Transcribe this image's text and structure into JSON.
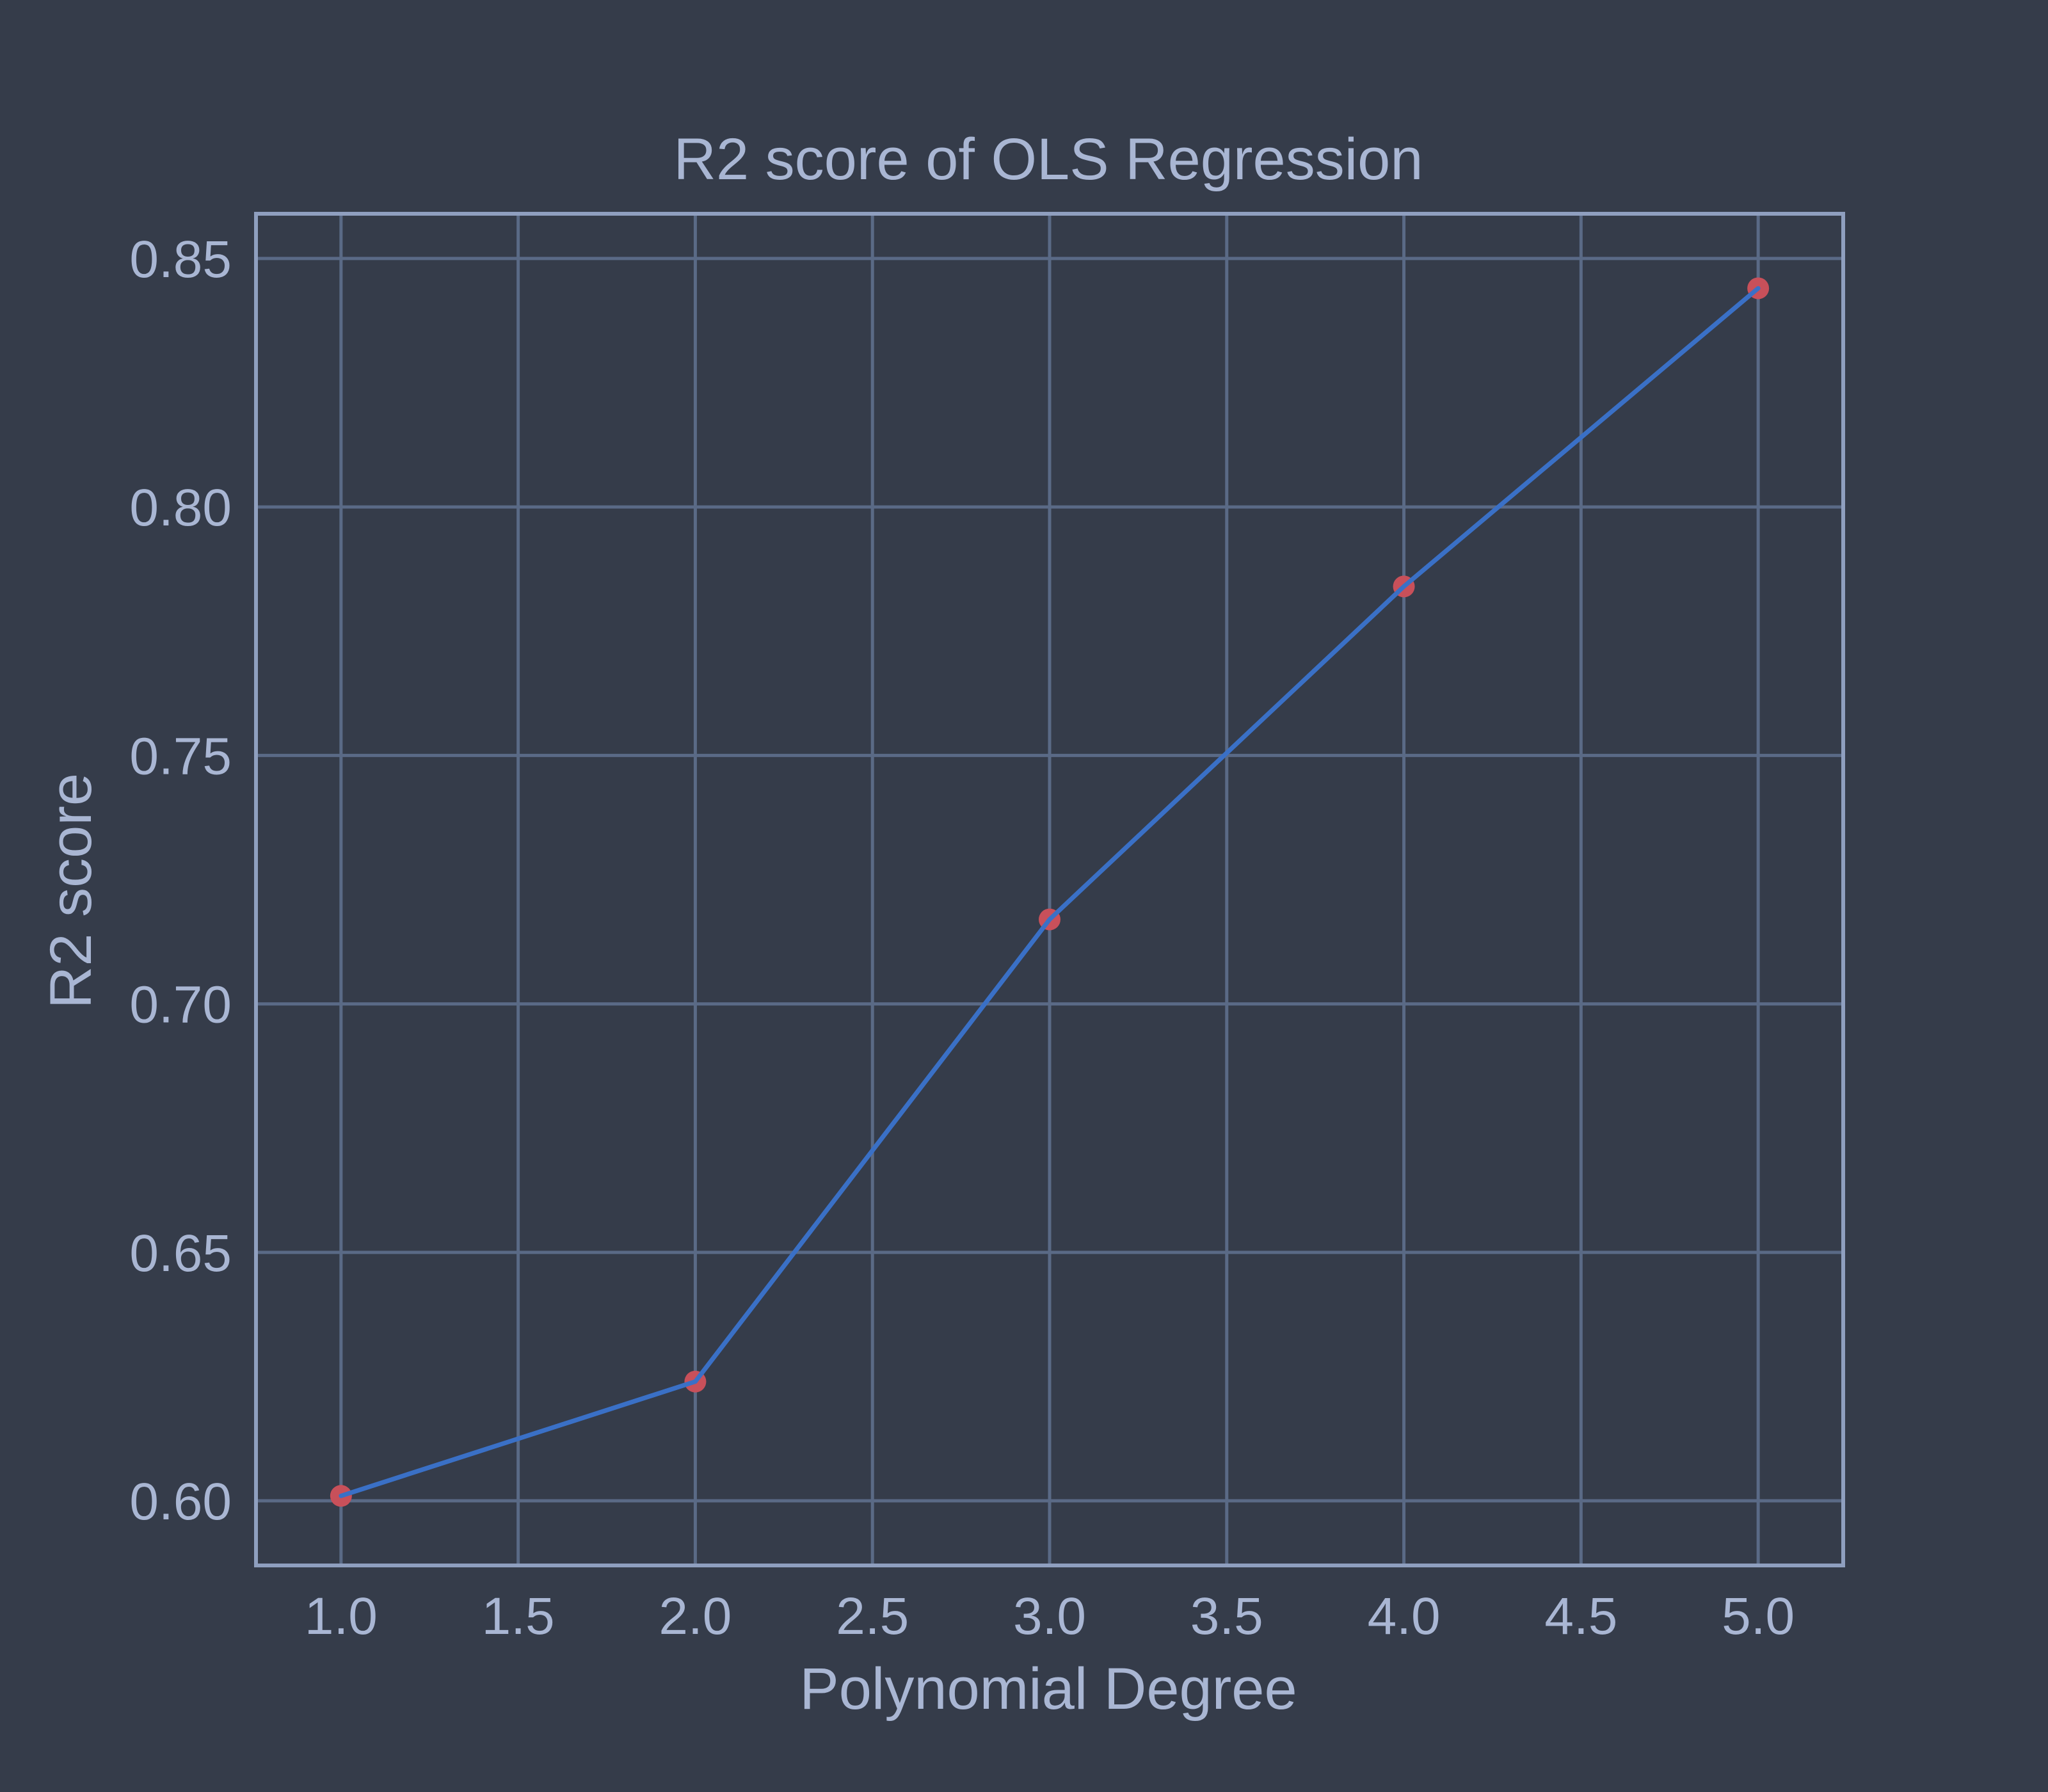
{
  "colors": {
    "background": "#353c4a",
    "axes_frame": "#8f9fbf",
    "grid": "#5a6a86",
    "text": "#a9b6d3",
    "line": "#3a70c6",
    "marker": "#c8505a"
  },
  "chart_data": {
    "type": "line",
    "title": "R2 score of OLS Regression",
    "xlabel": "Polynomial Degree",
    "ylabel": "R2 score",
    "x": [
      1,
      2,
      3,
      4,
      5
    ],
    "series": [
      {
        "values": [
          0.601,
          0.624,
          0.717,
          0.784,
          0.844
        ],
        "markers": true
      }
    ],
    "xlim": [
      0.76,
      5.24
    ],
    "ylim": [
      0.587,
      0.859
    ],
    "xticks": [
      1.0,
      1.5,
      2.0,
      2.5,
      3.0,
      3.5,
      4.0,
      4.5,
      5.0
    ],
    "xtick_labels": [
      "1.0",
      "1.5",
      "2.0",
      "2.5",
      "3.0",
      "3.5",
      "4.0",
      "4.5",
      "5.0"
    ],
    "yticks": [
      0.6,
      0.65,
      0.7,
      0.75,
      0.8,
      0.85
    ],
    "ytick_labels": [
      "0.60",
      "0.65",
      "0.70",
      "0.75",
      "0.80",
      "0.85"
    ],
    "grid": true,
    "legend": "none"
  }
}
